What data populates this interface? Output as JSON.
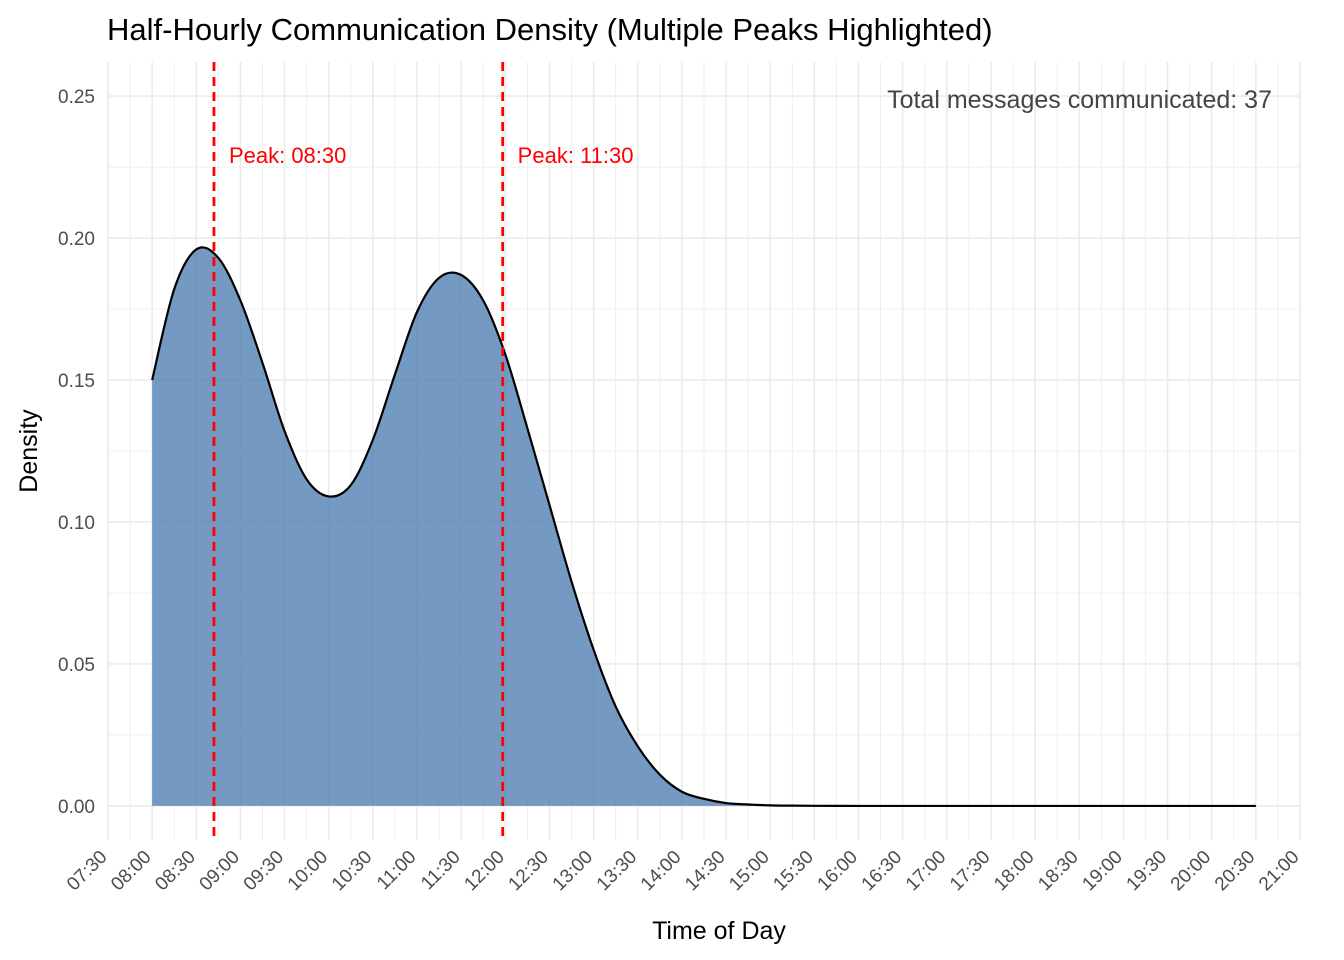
{
  "chart_data": {
    "type": "area",
    "title": "Half-Hourly Communication Density (Multiple Peaks Highlighted)",
    "xlabel": "Time of Day",
    "ylabel": "Density",
    "x_unit": "hours",
    "xlim": [
      7.5,
      21.0
    ],
    "ylim": [
      -0.012,
      0.262
    ],
    "x_ticks": [
      7.5,
      8.0,
      8.5,
      9.0,
      9.5,
      10.0,
      10.5,
      11.0,
      11.5,
      12.0,
      12.5,
      13.0,
      13.5,
      14.0,
      14.5,
      15.0,
      15.5,
      16.0,
      16.5,
      17.0,
      17.5,
      18.0,
      18.5,
      19.0,
      19.5,
      20.0,
      20.5,
      21.0
    ],
    "x_tick_labels": [
      "07:30",
      "08:00",
      "08:30",
      "09:00",
      "09:30",
      "10:00",
      "10:30",
      "11:00",
      "11:30",
      "12:00",
      "12:30",
      "13:00",
      "13:30",
      "14:00",
      "14:30",
      "15:00",
      "15:30",
      "16:00",
      "16:30",
      "17:00",
      "17:30",
      "18:00",
      "18:30",
      "19:00",
      "19:30",
      "20:00",
      "20:30",
      "21:00"
    ],
    "y_ticks": [
      0.0,
      0.05,
      0.1,
      0.15,
      0.2,
      0.25
    ],
    "y_tick_labels": [
      "0.00",
      "0.05",
      "0.10",
      "0.15",
      "0.20",
      "0.25"
    ],
    "series": [
      {
        "values_x": [
          8.0,
          8.25,
          8.5,
          8.75,
          9.0,
          9.25,
          9.5,
          9.75,
          10.0,
          10.25,
          10.5,
          10.75,
          11.0,
          11.25,
          11.5,
          11.75,
          12.0,
          12.25,
          12.5,
          12.75,
          13.0,
          13.25,
          13.5,
          13.75,
          14.0,
          14.25,
          14.5,
          14.75,
          15.0,
          15.25,
          15.5,
          15.75,
          16.0,
          16.5,
          17.0,
          17.5,
          18.0,
          18.5,
          19.0,
          19.5,
          20.0,
          20.5
        ],
        "values_y": [
          0.15,
          0.182,
          0.196,
          0.193,
          0.178,
          0.156,
          0.132,
          0.115,
          0.109,
          0.113,
          0.129,
          0.152,
          0.174,
          0.186,
          0.187,
          0.178,
          0.159,
          0.133,
          0.106,
          0.079,
          0.055,
          0.035,
          0.021,
          0.011,
          0.005,
          0.0025,
          0.001,
          0.0005,
          0.0002,
          0.0001,
          5e-05,
          2e-05,
          0.0,
          0.0,
          0.0,
          0.0,
          0.0,
          0.0,
          0.0,
          0.0,
          0.0,
          0.0
        ]
      }
    ],
    "peaks": [
      {
        "x": 8.7,
        "label": "Peak: 08:30"
      },
      {
        "x": 11.97,
        "label": "Peak: 11:30"
      }
    ],
    "annotation": "Total messages communicated: 37",
    "fill_color": "#4a7ab0",
    "line_color": "#000000",
    "peak_color": "#ff0000",
    "grid": true,
    "legend": "none"
  }
}
